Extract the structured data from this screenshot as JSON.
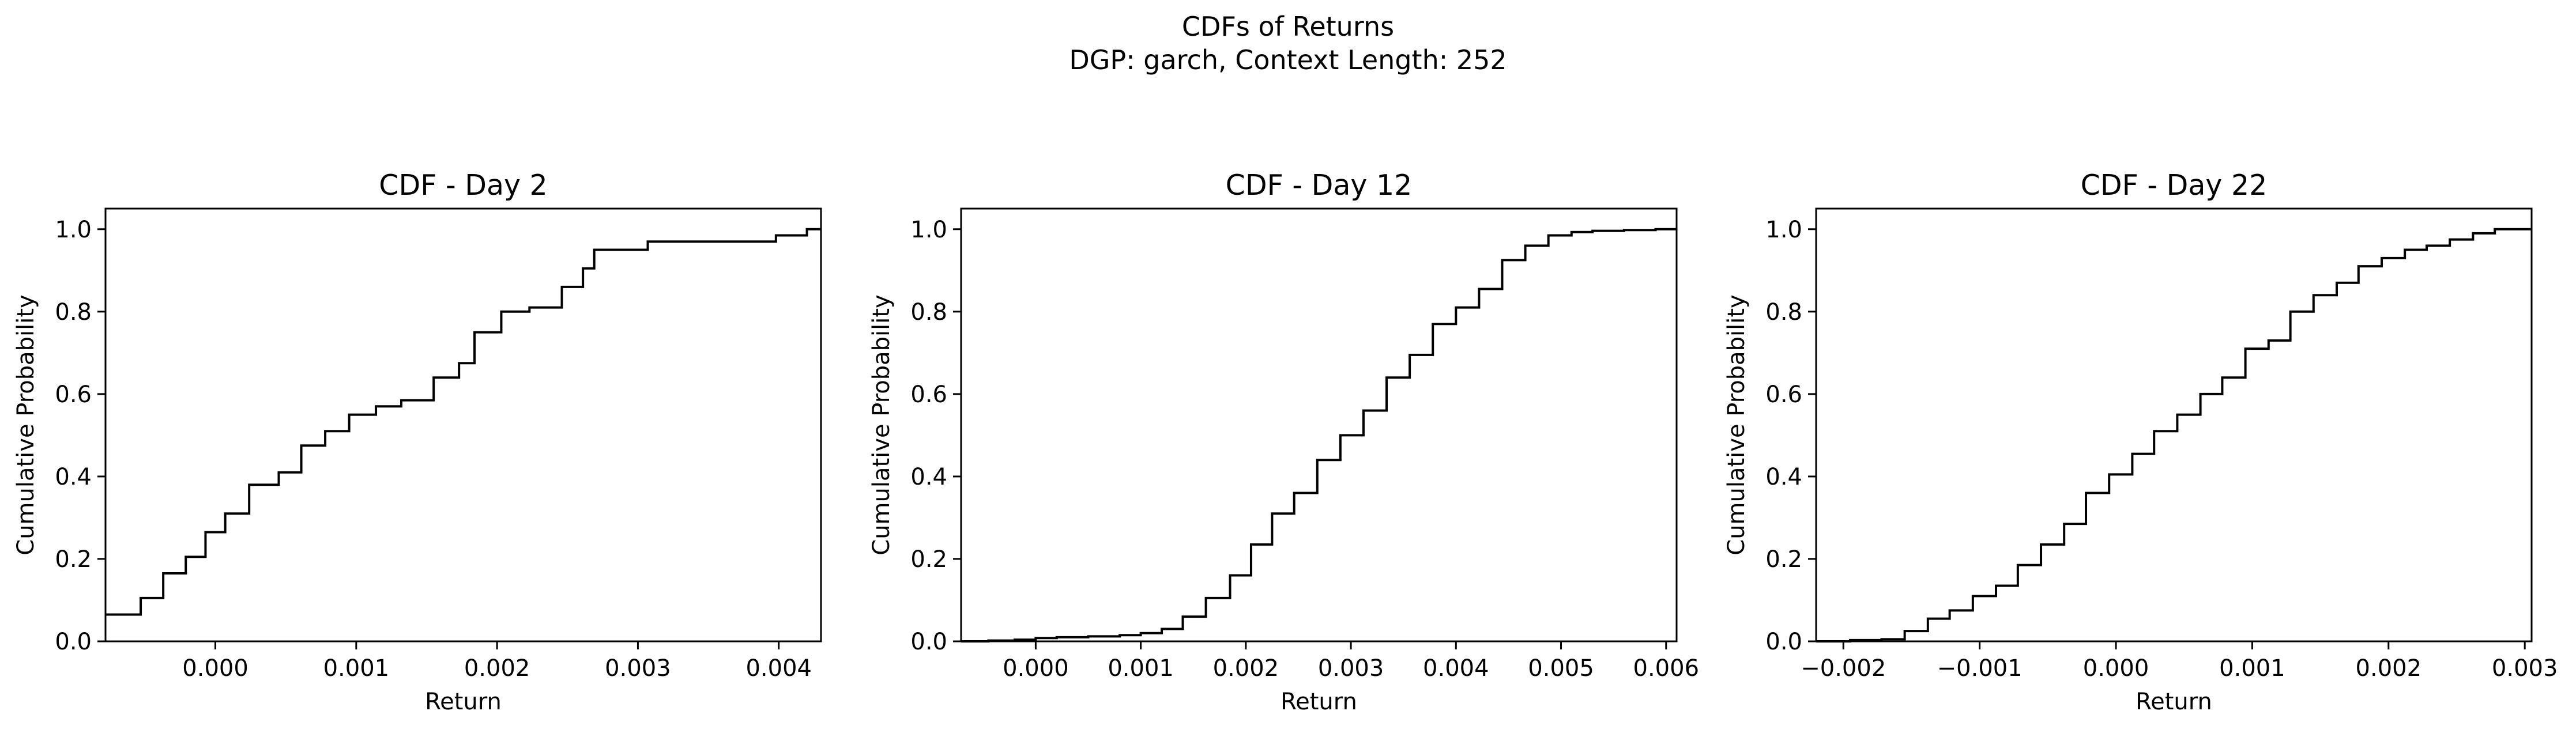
{
  "figure": {
    "suptitle_line1": "CDFs of Returns",
    "suptitle_line2": "DGP: garch, Context Length: 252"
  },
  "chart_data": [
    {
      "type": "line",
      "subtype": "ecdf-step",
      "title": "CDF - Day 2",
      "xlabel": "Return",
      "ylabel": "Cumulative Probability",
      "xlim": [
        -0.00078,
        0.0043
      ],
      "ylim": [
        0.0,
        1.05
      ],
      "xticks": [
        {
          "value": 0.0,
          "label": "0.000"
        },
        {
          "value": 0.001,
          "label": "0.001"
        },
        {
          "value": 0.002,
          "label": "0.002"
        },
        {
          "value": 0.003,
          "label": "0.003"
        },
        {
          "value": 0.004,
          "label": "0.004"
        }
      ],
      "yticks": [
        {
          "value": 0.0,
          "label": "0.0"
        },
        {
          "value": 0.2,
          "label": "0.2"
        },
        {
          "value": 0.4,
          "label": "0.4"
        },
        {
          "value": 0.6,
          "label": "0.6"
        },
        {
          "value": 0.8,
          "label": "0.8"
        },
        {
          "value": 1.0,
          "label": "1.0"
        }
      ],
      "grid": false,
      "line_color": "#000000",
      "x": [
        -0.00078,
        -0.00053,
        -0.00037,
        -0.00021,
        -7e-05,
        7e-05,
        0.00024,
        0.00045,
        0.00061,
        0.00078,
        0.00095,
        0.00114,
        0.00132,
        0.00155,
        0.00173,
        0.00184,
        0.00203,
        0.00223,
        0.00246,
        0.00261,
        0.00269,
        0.00307,
        0.00325,
        0.0037,
        0.00398,
        0.0042,
        0.0043
      ],
      "y": [
        0.065,
        0.105,
        0.165,
        0.205,
        0.265,
        0.31,
        0.38,
        0.41,
        0.475,
        0.51,
        0.55,
        0.57,
        0.585,
        0.64,
        0.675,
        0.75,
        0.8,
        0.81,
        0.86,
        0.905,
        0.95,
        0.97,
        0.97,
        0.97,
        0.985,
        1.0,
        1.0
      ]
    },
    {
      "type": "line",
      "subtype": "ecdf-step",
      "title": "CDF - Day 12",
      "xlabel": "Return",
      "ylabel": "Cumulative Probability",
      "xlim": [
        -0.00071,
        0.0061
      ],
      "ylim": [
        0.0,
        1.05
      ],
      "xticks": [
        {
          "value": 0.0,
          "label": "0.000"
        },
        {
          "value": 0.001,
          "label": "0.001"
        },
        {
          "value": 0.002,
          "label": "0.002"
        },
        {
          "value": 0.003,
          "label": "0.003"
        },
        {
          "value": 0.004,
          "label": "0.004"
        },
        {
          "value": 0.005,
          "label": "0.005"
        },
        {
          "value": 0.006,
          "label": "0.006"
        }
      ],
      "yticks": [
        {
          "value": 0.0,
          "label": "0.0"
        },
        {
          "value": 0.2,
          "label": "0.2"
        },
        {
          "value": 0.4,
          "label": "0.4"
        },
        {
          "value": 0.6,
          "label": "0.6"
        },
        {
          "value": 0.8,
          "label": "0.8"
        },
        {
          "value": 1.0,
          "label": "1.0"
        }
      ],
      "grid": false,
      "line_color": "#000000",
      "x": [
        -0.00071,
        -0.00045,
        -0.0002,
        0.0,
        0.0002,
        0.0005,
        0.0008,
        0.001,
        0.0012,
        0.0014,
        0.00162,
        0.00185,
        0.00205,
        0.00225,
        0.00246,
        0.00268,
        0.0029,
        0.00312,
        0.00334,
        0.00356,
        0.00378,
        0.004,
        0.00422,
        0.00444,
        0.00466,
        0.00488,
        0.0051,
        0.0053,
        0.0056,
        0.0059,
        0.0061
      ],
      "y": [
        0.0,
        0.002,
        0.004,
        0.008,
        0.01,
        0.012,
        0.015,
        0.02,
        0.03,
        0.06,
        0.105,
        0.16,
        0.235,
        0.31,
        0.36,
        0.44,
        0.5,
        0.56,
        0.64,
        0.695,
        0.77,
        0.81,
        0.855,
        0.925,
        0.96,
        0.985,
        0.993,
        0.996,
        0.998,
        1.0,
        1.0
      ]
    },
    {
      "type": "line",
      "subtype": "ecdf-step",
      "title": "CDF - Day 22",
      "xlabel": "Return",
      "ylabel": "Cumulative Probability",
      "xlim": [
        -0.0022,
        0.00305
      ],
      "ylim": [
        0.0,
        1.05
      ],
      "xticks": [
        {
          "value": -0.002,
          "label": "−0.002"
        },
        {
          "value": -0.001,
          "label": "−0.001"
        },
        {
          "value": 0.0,
          "label": "0.000"
        },
        {
          "value": 0.001,
          "label": "0.001"
        },
        {
          "value": 0.002,
          "label": "0.002"
        },
        {
          "value": 0.003,
          "label": "0.003"
        }
      ],
      "yticks": [
        {
          "value": 0.0,
          "label": "0.0"
        },
        {
          "value": 0.2,
          "label": "0.2"
        },
        {
          "value": 0.4,
          "label": "0.4"
        },
        {
          "value": 0.6,
          "label": "0.6"
        },
        {
          "value": 0.8,
          "label": "0.8"
        },
        {
          "value": 1.0,
          "label": "1.0"
        }
      ],
      "grid": false,
      "line_color": "#000000",
      "x": [
        -0.0022,
        -0.00195,
        -0.00172,
        -0.00155,
        -0.00138,
        -0.00122,
        -0.00105,
        -0.00088,
        -0.00072,
        -0.00055,
        -0.00038,
        -0.00022,
        -5e-05,
        0.00012,
        0.00028,
        0.00045,
        0.00062,
        0.00078,
        0.00095,
        0.00112,
        0.00128,
        0.00145,
        0.00162,
        0.00178,
        0.00195,
        0.00212,
        0.00228,
        0.00245,
        0.00262,
        0.00278,
        0.00305
      ],
      "y": [
        0.0,
        0.003,
        0.005,
        0.025,
        0.055,
        0.075,
        0.11,
        0.135,
        0.185,
        0.235,
        0.285,
        0.36,
        0.405,
        0.455,
        0.51,
        0.55,
        0.6,
        0.64,
        0.71,
        0.73,
        0.8,
        0.84,
        0.87,
        0.91,
        0.93,
        0.95,
        0.96,
        0.975,
        0.99,
        1.0,
        1.0
      ]
    }
  ]
}
